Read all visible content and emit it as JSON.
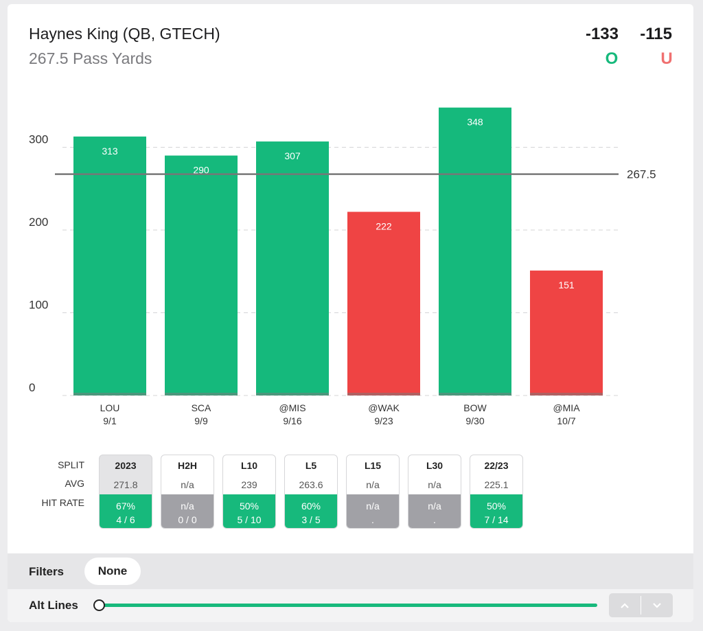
{
  "header": {
    "player": "Haynes King (QB, GTECH)",
    "prop": "267.5 Pass Yards",
    "over_odds": "-133",
    "under_odds": "-115",
    "over_label": "O",
    "under_label": "U",
    "over_color": "#17b97c",
    "under_color": "#f07070"
  },
  "chart_data": {
    "type": "bar",
    "title": "Haynes King (QB, GTECH) 267.5 Pass Yards",
    "line": 267.5,
    "line_label": "267.5",
    "ylim": [
      0,
      350
    ],
    "yticks": [
      0,
      100,
      200,
      300
    ],
    "ytick_labels": [
      "0",
      "100",
      "200",
      "300"
    ],
    "categories": [
      "LOU",
      "SCA",
      "@MIS",
      "@WAK",
      "BOW",
      "@MIA"
    ],
    "dates": [
      "9/1",
      "9/9",
      "9/16",
      "9/23",
      "9/30",
      "10/7"
    ],
    "values": [
      313,
      290,
      307,
      222,
      348,
      151
    ],
    "value_labels": [
      "313",
      "290",
      "307",
      "222",
      "348",
      "151"
    ],
    "over_color": "#15b97c",
    "under_color": "#ef4444"
  },
  "splits": {
    "row_labels": {
      "split": "SPLIT",
      "avg": "AVG",
      "hit_rate": "HIT RATE"
    },
    "items": [
      {
        "label": "2023",
        "avg": "271.8",
        "pct": "67%",
        "record": "4 / 6",
        "status": "green",
        "selected": true
      },
      {
        "label": "H2H",
        "avg": "n/a",
        "pct": "n/a",
        "record": "0 / 0",
        "status": "gray",
        "selected": false
      },
      {
        "label": "L10",
        "avg": "239",
        "pct": "50%",
        "record": "5 / 10",
        "status": "green",
        "selected": false
      },
      {
        "label": "L5",
        "avg": "263.6",
        "pct": "60%",
        "record": "3 / 5",
        "status": "green",
        "selected": false
      },
      {
        "label": "L15",
        "avg": "n/a",
        "pct": "n/a",
        "record": ".",
        "status": "gray",
        "selected": false
      },
      {
        "label": "L30",
        "avg": "n/a",
        "pct": "n/a",
        "record": ".",
        "status": "gray",
        "selected": false
      },
      {
        "label": "22/23",
        "avg": "225.1",
        "pct": "50%",
        "record": "7 / 14",
        "status": "green",
        "selected": false
      }
    ]
  },
  "filters": {
    "label": "Filters",
    "value": "None"
  },
  "alt_lines": {
    "label": "Alt Lines",
    "up_icon": "chevron-up-icon",
    "down_icon": "chevron-down-icon"
  }
}
